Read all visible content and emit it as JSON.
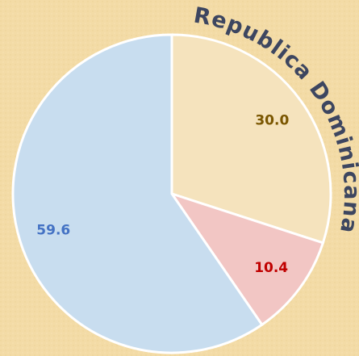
{
  "chart_data": {
    "type": "pie",
    "title": "Republica Dominicana",
    "values": [
      30.0,
      10.4,
      59.6
    ],
    "value_labels": [
      "30.0",
      "10.4",
      "59.6"
    ],
    "colors": [
      "#f5e3bd",
      "#f2c6c4",
      "#c8ddef"
    ],
    "label_colors": [
      "#7a5600",
      "#c00000",
      "#4472c4"
    ],
    "start_angle": 0,
    "direction": "clockwise"
  }
}
